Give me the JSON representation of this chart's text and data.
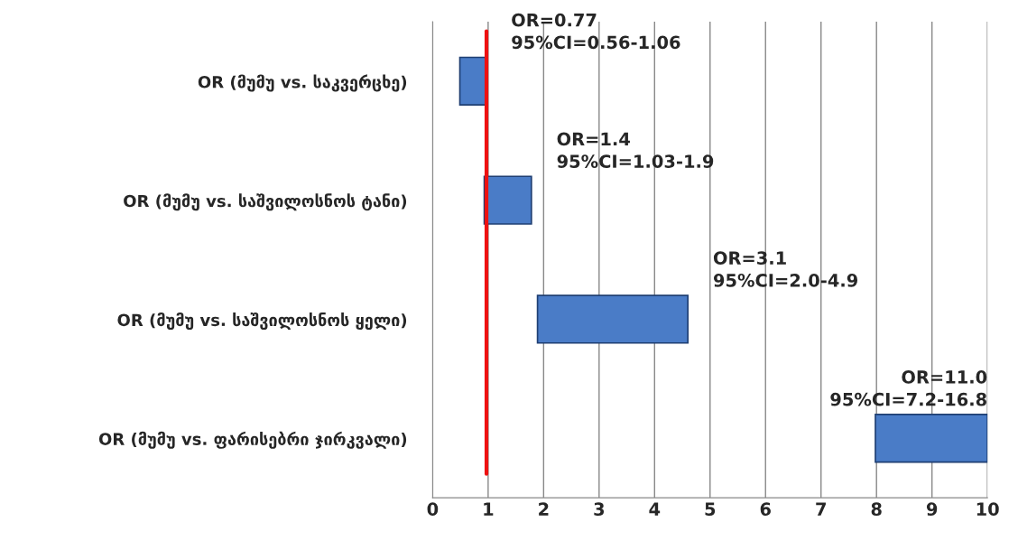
{
  "chart_data": {
    "type": "bar",
    "orientation": "horizontal",
    "categories": [
      "OR (მუმუ vs. საკვერცხე)",
      "OR (მუმუ vs. საშვილოსნოს ტანი)",
      "OR (მუმუ vs. საშვილოსნოს ყელი)",
      "OR (მუმუ vs. ფარისებრი ჯირკვალი)"
    ],
    "base": [
      0.49,
      0.93,
      1.89,
      7.98
    ],
    "values": [
      0.47,
      0.85,
      2.71,
      2.02
    ],
    "color": "#4a7cc7",
    "xlim": [
      0,
      10
    ],
    "xticks": [
      0,
      1,
      2,
      3,
      4,
      5,
      6,
      7,
      8,
      9,
      10
    ],
    "grid": "x",
    "ref_lines": [
      {
        "axis": "x",
        "value": 0.97,
        "color": "#ee1111"
      }
    ],
    "annotations": [
      "OR=0.77\n95%CI=0.56-1.06",
      "OR=1.4\n95%CI=1.03-1.9",
      "OR=3.1\n95%CI=2.0-4.9",
      "OR=11.0\n95%CI=7.2-16.8"
    ]
  }
}
